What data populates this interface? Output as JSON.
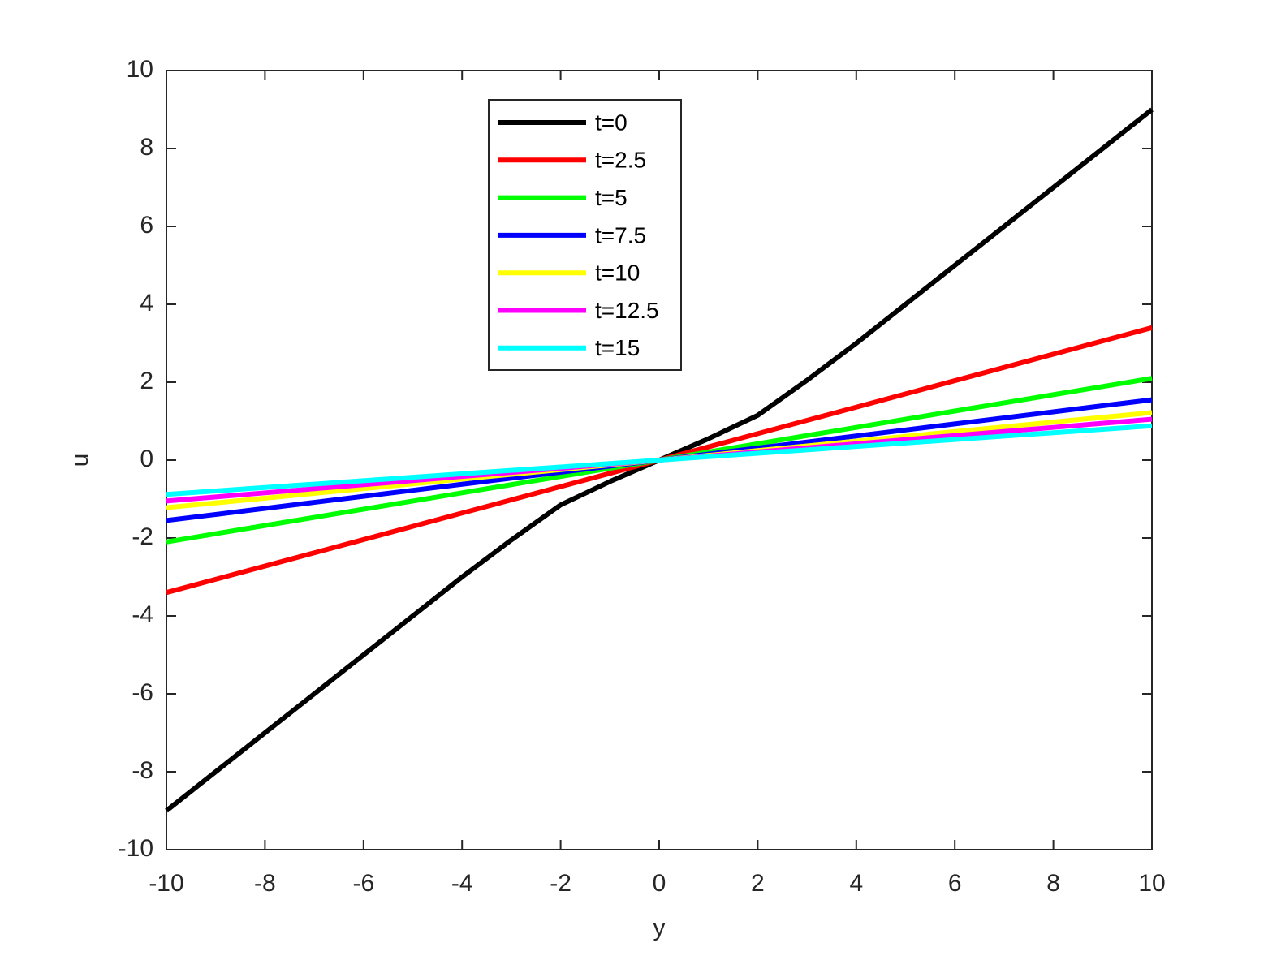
{
  "chart_data": {
    "type": "line",
    "x": [
      -10,
      -9,
      -8,
      -7,
      -6,
      -5,
      -4,
      -3,
      -2,
      -1,
      0,
      1,
      2,
      3,
      4,
      5,
      6,
      7,
      8,
      9,
      10
    ],
    "series": [
      {
        "name": "t=0",
        "color": "#000000",
        "values": [
          -9,
          -8,
          -7,
          -6,
          -5,
          -4,
          -3,
          -2.05,
          -1.15,
          -0.55,
          0,
          0.55,
          1.15,
          2.05,
          3,
          4,
          5,
          6,
          7,
          8,
          9
        ]
      },
      {
        "name": "t=2.5",
        "color": "#ff0000",
        "values": [
          -3.4,
          -3.06,
          -2.72,
          -2.38,
          -2.04,
          -1.7,
          -1.36,
          -1.02,
          -0.68,
          -0.34,
          0,
          0.34,
          0.68,
          1.02,
          1.36,
          1.7,
          2.04,
          2.38,
          2.72,
          3.06,
          3.4
        ]
      },
      {
        "name": "t=5",
        "color": "#00ff00",
        "values": [
          -2.1,
          -1.89,
          -1.68,
          -1.47,
          -1.26,
          -1.05,
          -0.84,
          -0.63,
          -0.42,
          -0.21,
          0,
          0.21,
          0.42,
          0.63,
          0.84,
          1.05,
          1.26,
          1.47,
          1.68,
          1.89,
          2.1
        ]
      },
      {
        "name": "t=7.5",
        "color": "#0000ff",
        "values": [
          -1.55,
          -1.395,
          -1.24,
          -1.085,
          -0.93,
          -0.775,
          -0.62,
          -0.465,
          -0.31,
          -0.155,
          0,
          0.155,
          0.31,
          0.465,
          0.62,
          0.775,
          0.93,
          1.085,
          1.24,
          1.395,
          1.55
        ]
      },
      {
        "name": "t=10",
        "color": "#ffff00",
        "values": [
          -1.22,
          -1.098,
          -0.976,
          -0.854,
          -0.732,
          -0.61,
          -0.488,
          -0.366,
          -0.244,
          -0.122,
          0,
          0.122,
          0.244,
          0.366,
          0.488,
          0.61,
          0.732,
          0.854,
          0.976,
          1.098,
          1.22
        ]
      },
      {
        "name": "t=12.5",
        "color": "#ff00ff",
        "values": [
          -1.05,
          -0.945,
          -0.84,
          -0.735,
          -0.63,
          -0.525,
          -0.42,
          -0.315,
          -0.21,
          -0.105,
          0,
          0.105,
          0.21,
          0.315,
          0.42,
          0.525,
          0.63,
          0.735,
          0.84,
          0.945,
          1.05
        ]
      },
      {
        "name": "t=15",
        "color": "#00ffff",
        "values": [
          -0.88,
          -0.792,
          -0.704,
          -0.616,
          -0.528,
          -0.44,
          -0.352,
          -0.264,
          -0.176,
          -0.088,
          0,
          0.088,
          0.176,
          0.264,
          0.352,
          0.44,
          0.528,
          0.616,
          0.704,
          0.792,
          0.88
        ]
      }
    ],
    "x_label": "y",
    "y_label": "u",
    "xlim": [
      -10,
      10
    ],
    "ylim": [
      -10,
      10
    ],
    "xticks": [
      -10,
      -8,
      -6,
      -4,
      -2,
      0,
      2,
      4,
      6,
      8,
      10
    ],
    "yticks": [
      -10,
      -8,
      -6,
      -4,
      -2,
      0,
      2,
      4,
      6,
      8,
      10
    ],
    "legend": "top"
  }
}
